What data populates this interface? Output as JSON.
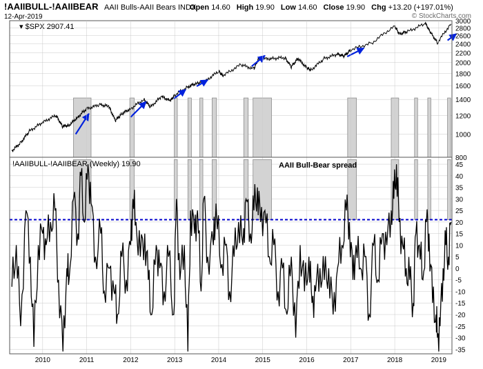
{
  "header": {
    "symbol": "!AAIIBULL-!AAIIBEAR",
    "description": "AAII Bulls-AAII Bears",
    "exchange": "INDX",
    "date": "12-Apr-2019",
    "open_label": "Open",
    "open": "14.60",
    "high_label": "High",
    "high": "19.90",
    "low_label": "Low",
    "low": "14.60",
    "close_label": "Close",
    "close": "19.90",
    "chg_label": "Chg",
    "chg": "+13.20 (+197.01%)",
    "watermark": "© StockCharts.com"
  },
  "upper_panel": {
    "legend": "$SPX 2907.41"
  },
  "lower_panel": {
    "legend": "!AAIIBULL-!AAIIBEAR (Weekly) 19.90",
    "annotation": "AAII Bull-Bear spread"
  },
  "colors": {
    "line": "#000000",
    "arrow": "#0022dd",
    "threshold": "#0000cc",
    "shade_fill": "#d3d3d3",
    "shade_stroke": "#8c8c8c",
    "grid": "#c8c8c8"
  },
  "chart_data": [
    {
      "type": "line",
      "name": "$SPX",
      "log_scale": true,
      "ylim": [
        800,
        3000
      ],
      "y_ticks": [
        800,
        1000,
        1200,
        1400,
        1600,
        1800,
        2000,
        2200,
        2400,
        2600,
        2800,
        3000
      ],
      "x": [
        2009.3,
        2009.5,
        2009.7,
        2010.0,
        2010.3,
        2010.45,
        2010.6,
        2010.8,
        2011.0,
        2011.3,
        2011.5,
        2011.65,
        2011.8,
        2012.0,
        2012.3,
        2012.45,
        2012.7,
        2012.9,
        2013.0,
        2013.3,
        2013.5,
        2013.7,
        2014.0,
        2014.1,
        2014.5,
        2014.8,
        2014.9,
        2015.2,
        2015.5,
        2015.65,
        2015.8,
        2016.0,
        2016.1,
        2016.4,
        2016.7,
        2016.85,
        2017.0,
        2017.5,
        2018.0,
        2018.1,
        2018.3,
        2018.7,
        2018.8,
        2018.97,
        2019.28
      ],
      "y": [
        850,
        920,
        1030,
        1120,
        1200,
        1080,
        1090,
        1180,
        1280,
        1330,
        1310,
        1140,
        1220,
        1280,
        1400,
        1300,
        1440,
        1380,
        1460,
        1580,
        1640,
        1670,
        1840,
        1760,
        1960,
        1880,
        2070,
        2080,
        2100,
        1920,
        2080,
        1900,
        1860,
        2080,
        2170,
        2130,
        2260,
        2430,
        2850,
        2640,
        2700,
        2920,
        2700,
        2420,
        2907
      ]
    },
    {
      "type": "line",
      "name": "!AAIIBULL-!AAIIBEAR (Weekly)",
      "ylim": [
        -37,
        48
      ],
      "y_ticks": [
        -35,
        -30,
        -25,
        -20,
        -15,
        -10,
        -5,
        0,
        5,
        10,
        15,
        20,
        25,
        30,
        35,
        40,
        45
      ],
      "threshold": 21,
      "x_ticks": [
        "2010",
        "2011",
        "2012",
        "2013",
        "2014",
        "2015",
        "2016",
        "2017",
        "2018",
        "2019"
      ],
      "shaded_periods": [
        [
          2010.7,
          2011.1
        ],
        [
          2011.98,
          2012.08
        ],
        [
          2012.99,
          2013.06
        ],
        [
          2013.3,
          2013.38
        ],
        [
          2013.57,
          2013.64
        ],
        [
          2013.85,
          2013.95
        ],
        [
          2014.57,
          2014.67
        ],
        [
          2014.78,
          2015.2
        ],
        [
          2016.93,
          2017.13
        ],
        [
          2017.92,
          2018.09
        ],
        [
          2018.45,
          2018.52
        ],
        [
          2018.75,
          2018.82
        ],
        [
          2019.2,
          2019.27
        ]
      ],
      "x": [
        2009.3,
        2009.4,
        2009.5,
        2009.62,
        2009.72,
        2009.8,
        2009.9,
        2010.0,
        2010.08,
        2010.18,
        2010.28,
        2010.36,
        2010.46,
        2010.55,
        2010.6,
        2010.7,
        2010.8,
        2010.87,
        2010.95,
        2011.03,
        2011.1,
        2011.2,
        2011.32,
        2011.4,
        2011.52,
        2011.62,
        2011.7,
        2011.8,
        2011.9,
        2012.0,
        2012.05,
        2012.12,
        2012.22,
        2012.32,
        2012.4,
        2012.48,
        2012.58,
        2012.66,
        2012.76,
        2012.86,
        2012.98,
        2013.04,
        2013.12,
        2013.22,
        2013.3,
        2013.36,
        2013.45,
        2013.52,
        2013.6,
        2013.66,
        2013.75,
        2013.88,
        2013.94,
        2014.05,
        2014.15,
        2014.25,
        2014.35,
        2014.45,
        2014.55,
        2014.62,
        2014.72,
        2014.8,
        2014.88,
        2014.95,
        2015.05,
        2015.15,
        2015.25,
        2015.35,
        2015.45,
        2015.55,
        2015.65,
        2015.75,
        2015.85,
        2015.95,
        2016.05,
        2016.12,
        2016.2,
        2016.3,
        2016.4,
        2016.5,
        2016.6,
        2016.7,
        2016.8,
        2016.9,
        2016.97,
        2017.05,
        2017.12,
        2017.22,
        2017.32,
        2017.42,
        2017.52,
        2017.62,
        2017.72,
        2017.82,
        2017.92,
        2017.98,
        2018.04,
        2018.1,
        2018.18,
        2018.26,
        2018.34,
        2018.42,
        2018.48,
        2018.56,
        2018.64,
        2018.72,
        2018.78,
        2018.86,
        2018.94,
        2018.97,
        2019.03,
        2019.1,
        2019.16,
        2019.22,
        2019.28
      ],
      "y": [
        -8,
        10,
        -25,
        25,
        5,
        -34,
        10,
        15,
        10,
        20,
        25,
        -5,
        -36,
        0,
        -5,
        30,
        15,
        40,
        20,
        45,
        28,
        5,
        15,
        -10,
        0,
        -10,
        -20,
        5,
        -5,
        10,
        30,
        20,
        5,
        15,
        -5,
        -20,
        10,
        0,
        -10,
        5,
        -20,
        30,
        -5,
        10,
        -36,
        25,
        15,
        25,
        -10,
        30,
        5,
        10,
        28,
        0,
        10,
        -10,
        5,
        20,
        10,
        30,
        15,
        25,
        35,
        20,
        25,
        5,
        10,
        -10,
        0,
        -20,
        5,
        -30,
        10,
        -10,
        5,
        -15,
        -10,
        0,
        -5,
        0,
        -20,
        0,
        10,
        25,
        20,
        -5,
        10,
        0,
        5,
        -20,
        10,
        -5,
        15,
        10,
        25,
        30,
        45,
        20,
        10,
        0,
        -5,
        -15,
        15,
        10,
        -5,
        20,
        15,
        -15,
        -20,
        -30,
        -25,
        0,
        10,
        5,
        20
      ]
    }
  ]
}
